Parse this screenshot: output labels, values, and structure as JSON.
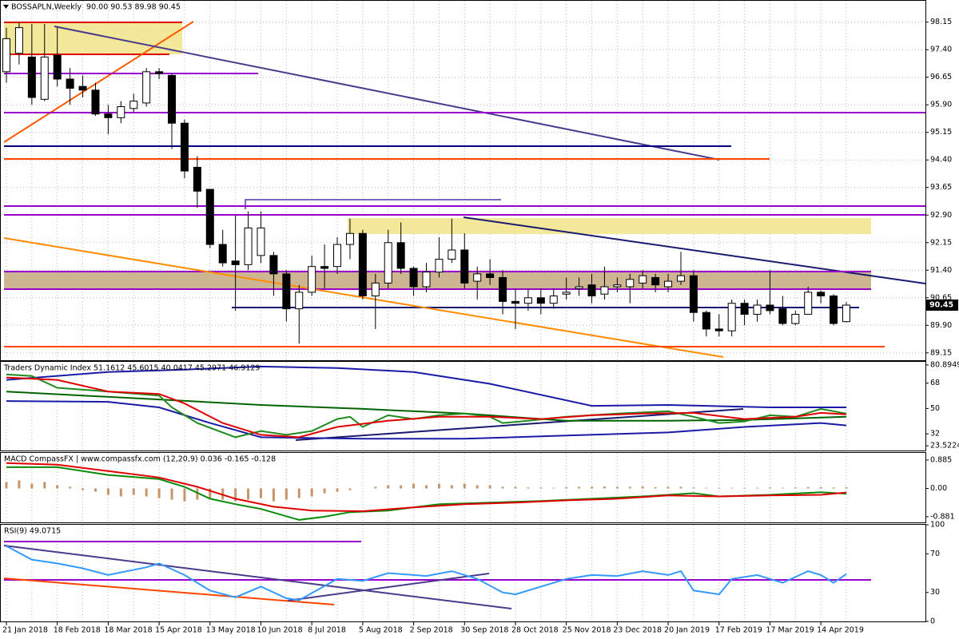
{
  "chart_data": [
    {
      "type": "candlestick",
      "title": "BOSSAPLN,Weekly  90.00 90.53 89.98 90.45",
      "categories": [
        "21 Jan 2018",
        null,
        null,
        null,
        "18 Feb 2018",
        null,
        null,
        null,
        "18 Mar 2018",
        null,
        null,
        null,
        "15 Apr 2018",
        null,
        null,
        null,
        "13 May 2018",
        null,
        null,
        null,
        "10 Jun 2018",
        null,
        null,
        null,
        "8 Jul 2018",
        null,
        null,
        null,
        "5 Aug 2018",
        null,
        null,
        null,
        "2 Sep 2018",
        null,
        null,
        null,
        "30 Sep 2018",
        null,
        null,
        null,
        "28 Oct 2018",
        null,
        null,
        null,
        "25 Nov 2018",
        null,
        null,
        null,
        "23 Dec 2018",
        null,
        null,
        null,
        "20 Jan 2019",
        null,
        null,
        null,
        "17 Feb 2019",
        null,
        null,
        null,
        "17 Mar 2019",
        null,
        null,
        null,
        "14 Apr 2019",
        null,
        null
      ],
      "open": [
        96.8,
        97.3,
        97.2,
        96.05,
        97.25,
        96.6,
        96.4,
        96.3,
        95.65,
        95.55,
        95.8,
        95.95,
        96.8,
        96.7,
        95.4,
        94.2,
        93.6,
        92.1,
        91.65,
        91.55,
        91.8,
        91.8,
        91.3,
        90.35,
        90.8,
        91.5,
        91.5,
        92.1,
        92.4,
        90.7,
        91.05,
        92.15,
        91.45,
        90.95,
        91.35,
        91.7,
        91.95,
        91.1,
        91.3,
        91.2,
        90.55,
        90.5,
        90.65,
        90.5,
        90.75,
        90.9,
        91.0,
        90.75,
        90.95,
        90.95,
        91.05,
        91.2,
        90.95,
        91.1,
        91.25,
        90.25,
        89.8,
        89.75,
        90.5,
        90.2,
        90.45,
        90.35,
        89.95,
        90.2,
        90.8,
        90.7,
        90.0
      ],
      "high": [
        98.0,
        98.15,
        98.1,
        98.1,
        98.0,
        96.9,
        96.7,
        96.5,
        95.9,
        96.0,
        96.2,
        96.9,
        96.9,
        96.75,
        95.5,
        94.5,
        93.6,
        92.5,
        92.9,
        93.0,
        93.0,
        91.9,
        91.4,
        91.0,
        91.8,
        92.1,
        92.3,
        92.8,
        92.5,
        91.3,
        92.5,
        92.7,
        91.5,
        91.6,
        92.3,
        92.8,
        92.4,
        91.5,
        91.7,
        91.4,
        90.9,
        90.9,
        90.9,
        90.9,
        91.2,
        91.2,
        91.3,
        91.5,
        91.2,
        91.3,
        91.4,
        91.3,
        91.3,
        91.9,
        91.4,
        90.3,
        90.2,
        90.6,
        90.6,
        90.6,
        91.4,
        90.7,
        90.3,
        90.95,
        90.85,
        90.75,
        90.53
      ],
      "low": [
        96.5,
        97.0,
        95.9,
        96.0,
        96.4,
        95.9,
        96.1,
        95.6,
        95.1,
        95.4,
        95.7,
        95.85,
        96.6,
        94.7,
        93.9,
        93.1,
        92.0,
        91.5,
        90.3,
        91.4,
        91.6,
        90.7,
        90.0,
        89.4,
        90.7,
        90.9,
        91.3,
        91.7,
        90.6,
        89.8,
        90.9,
        91.3,
        90.7,
        90.8,
        91.2,
        91.6,
        90.9,
        90.6,
        91.0,
        90.2,
        89.8,
        90.3,
        90.2,
        90.35,
        90.6,
        90.7,
        90.5,
        90.6,
        90.8,
        90.5,
        90.9,
        90.8,
        90.8,
        91.0,
        90.0,
        89.6,
        89.6,
        89.6,
        89.9,
        90.0,
        90.2,
        89.9,
        89.9,
        90.2,
        90.5,
        89.9,
        89.98
      ],
      "close": [
        97.7,
        98.0,
        96.1,
        97.2,
        96.6,
        96.35,
        96.3,
        95.65,
        95.55,
        95.85,
        96.0,
        96.8,
        96.75,
        95.4,
        94.1,
        93.55,
        92.1,
        91.6,
        91.55,
        92.55,
        92.55,
        91.3,
        90.35,
        90.8,
        91.5,
        91.45,
        92.1,
        92.4,
        90.7,
        91.05,
        92.15,
        91.45,
        90.95,
        91.35,
        91.7,
        91.95,
        91.05,
        91.3,
        91.2,
        90.55,
        90.5,
        90.65,
        90.5,
        90.7,
        90.8,
        90.95,
        90.7,
        90.95,
        91.0,
        91.15,
        91.25,
        91.0,
        91.1,
        91.25,
        90.25,
        89.8,
        89.75,
        90.5,
        90.2,
        90.45,
        90.3,
        89.95,
        90.2,
        90.8,
        90.7,
        89.95,
        90.45
      ],
      "up_color": "#ffffff",
      "down_color": "#000000",
      "ylim": [
        88.95,
        98.73
      ],
      "yticks": [
        98.15,
        {
          "value": 97.4,
          "label": "97.40"
        },
        96.65,
        {
          "value": 95.9,
          "label": "95.90"
        },
        95.15,
        {
          "value": 94.4,
          "label": "94.40"
        },
        93.65,
        {
          "value": 92.9,
          "label": "92.90"
        },
        92.15,
        {
          "value": 91.4,
          "label": "91.40"
        },
        90.65,
        {
          "value": 89.9,
          "label": "89.90"
        },
        89.15
      ],
      "last_price": 90.45,
      "grid": true
    },
    {
      "type": "line",
      "title": "Traders Dynamic Index 51.1612 45.6015 40.0417 45.2971 46.9129",
      "series": [
        {
          "color": "#1a1aa6",
          "x": [
            0,
            8,
            14,
            20,
            26,
            32,
            38,
            46,
            52,
            60,
            66
          ],
          "values": [
            70.3,
            75.9,
            77.6,
            79.8,
            78.7,
            75.9,
            67.5,
            51.9,
            52.5,
            50.8,
            50.8
          ]
        },
        {
          "color": "#1a1aa6",
          "x": [
            0,
            8,
            12,
            16,
            20,
            28,
            36,
            44,
            52,
            58,
            64,
            66
          ],
          "values": [
            55.3,
            54.7,
            50.8,
            39.7,
            29.6,
            28.5,
            28.5,
            30.8,
            33,
            36.9,
            39.7,
            38
          ]
        },
        {
          "color": "#006400",
          "x": [
            0,
            6,
            12,
            20,
            28,
            36,
            44,
            52,
            58,
            66
          ],
          "values": [
            62,
            59.2,
            56.4,
            52.5,
            49.7,
            46.4,
            41.3,
            41.3,
            41.9,
            44.1
          ]
        },
        {
          "color": "#1f8a1f",
          "x": [
            0,
            2,
            4,
            8,
            12,
            13,
            15,
            18,
            20,
            22,
            24,
            26,
            27,
            28,
            30,
            32,
            34,
            36,
            38,
            39,
            41,
            44,
            48,
            52,
            54,
            56,
            58,
            60,
            62,
            64,
            66
          ],
          "values": [
            74.2,
            73.1,
            64.7,
            62,
            59.2,
            50.8,
            39.7,
            29.6,
            34,
            31.3,
            34,
            42.5,
            44.1,
            36.9,
            45.2,
            42.5,
            45.2,
            46.4,
            44.1,
            39.7,
            41.3,
            44.1,
            46.4,
            48,
            44.1,
            39.7,
            40.8,
            45.2,
            44.1,
            49.7,
            46.4
          ]
        },
        {
          "color": "#e00000",
          "x": [
            0,
            4,
            8,
            12,
            14,
            17,
            20,
            23,
            26,
            30,
            34,
            38,
            42,
            46,
            50,
            54,
            58,
            62,
            64,
            66
          ],
          "values": [
            72,
            70.3,
            62,
            60.3,
            53.6,
            39.7,
            31.3,
            29.6,
            36.9,
            41.3,
            44.1,
            44.1,
            42.5,
            45.2,
            46.4,
            46.9,
            42.5,
            44.1,
            46.9,
            45.8
          ]
        }
      ],
      "ylim": [
        20.18,
        83.12
      ],
      "yticks": [
        80.8949,
        68,
        50,
        32,
        23.5224
      ]
    },
    {
      "type": "line",
      "title": "MACD CompassFX | www.compassfx.com (12,20,9) 0.036 -0.165 -0.128",
      "series": [
        {
          "type": "bar",
          "color": "#c8956a",
          "x": [
            0,
            1,
            2,
            3,
            4,
            5,
            6,
            7,
            8,
            9,
            10,
            11,
            12,
            13,
            14,
            15,
            16,
            17,
            18,
            19,
            20,
            21,
            22,
            23,
            24,
            25,
            26,
            27,
            28,
            29,
            30,
            31,
            32,
            33,
            34,
            35,
            36,
            37,
            38,
            39,
            40,
            41,
            42,
            43,
            44,
            45,
            46,
            47,
            48,
            49,
            50,
            51,
            52,
            53,
            54,
            55,
            56,
            57,
            58,
            59,
            60,
            61,
            62,
            63,
            64,
            65,
            66
          ],
          "values": [
            0.2,
            0.25,
            0.15,
            0.2,
            0.1,
            0.05,
            -0.05,
            -0.1,
            -0.2,
            -0.25,
            -0.2,
            -0.25,
            -0.3,
            -0.35,
            -0.4,
            -0.35,
            -0.3,
            -0.35,
            -0.4,
            -0.35,
            -0.3,
            -0.4,
            -0.35,
            -0.3,
            -0.25,
            -0.15,
            -0.1,
            -0.05,
            0,
            0.05,
            0.1,
            0.1,
            0.15,
            0.1,
            0.15,
            0.1,
            0.15,
            0.1,
            0.1,
            0.05,
            0.05,
            0.03,
            0.03,
            0.02,
            0.04,
            0.05,
            0.05,
            0.06,
            0.05,
            0.05,
            0.06,
            0.04,
            0.05,
            0.05,
            0.03,
            0.02,
            0.02,
            0.02,
            0.02,
            0.02,
            0.03,
            0.02,
            0.03,
            0.04,
            0.04,
            0.03,
            0.036
          ]
        },
        {
          "color": "#0a8a0a",
          "x": [
            0,
            4,
            8,
            12,
            14,
            16,
            18,
            20,
            23,
            25,
            27,
            30,
            34,
            38,
            42,
            46,
            50,
            54,
            56,
            60,
            64,
            66
          ],
          "values": [
            0.66,
            0.66,
            0.42,
            0.29,
            0.05,
            -0.32,
            -0.49,
            -0.64,
            -0.98,
            -0.88,
            -0.74,
            -0.69,
            -0.49,
            -0.44,
            -0.39,
            -0.32,
            -0.25,
            -0.15,
            -0.25,
            -0.2,
            -0.12,
            -0.165
          ]
        },
        {
          "color": "#e00000",
          "x": [
            0,
            4,
            8,
            12,
            15,
            18,
            21,
            24,
            28,
            32,
            36,
            40,
            44,
            48,
            52,
            56,
            60,
            64,
            66
          ],
          "values": [
            0.79,
            0.74,
            0.54,
            0.34,
            0.05,
            -0.32,
            -0.57,
            -0.69,
            -0.71,
            -0.59,
            -0.49,
            -0.44,
            -0.37,
            -0.32,
            -0.22,
            -0.25,
            -0.22,
            -0.2,
            -0.128
          ]
        }
      ],
      "ylim": [
        -1.057,
        1.106
      ],
      "yticks": [
        0.885,
        {
          "value": 0,
          "label": "0.00"
        },
        -0.881
      ]
    },
    {
      "type": "line",
      "title": "RSI(9) 49.0715",
      "series": [
        {
          "color": "#3399ff",
          "x": [
            0,
            2,
            4,
            6,
            8,
            11,
            12,
            14,
            16,
            18,
            20,
            22,
            23,
            26,
            28,
            30,
            33,
            35,
            37,
            39,
            40,
            42,
            44,
            46,
            48,
            50,
            52,
            53,
            54,
            56,
            57,
            59,
            61,
            63,
            64,
            65,
            66
          ],
          "values": [
            78,
            64,
            60,
            55,
            48,
            56,
            60,
            48,
            32,
            25,
            36,
            24,
            22,
            44,
            42,
            50,
            47,
            52,
            44,
            30,
            28,
            36,
            44,
            48,
            47,
            52,
            48,
            52,
            32,
            28,
            44,
            48,
            40,
            52,
            48,
            40,
            49
          ]
        }
      ],
      "ylim": [
        0,
        100
      ],
      "yticks": [
        100,
        70,
        30,
        0
      ]
    }
  ]
}
